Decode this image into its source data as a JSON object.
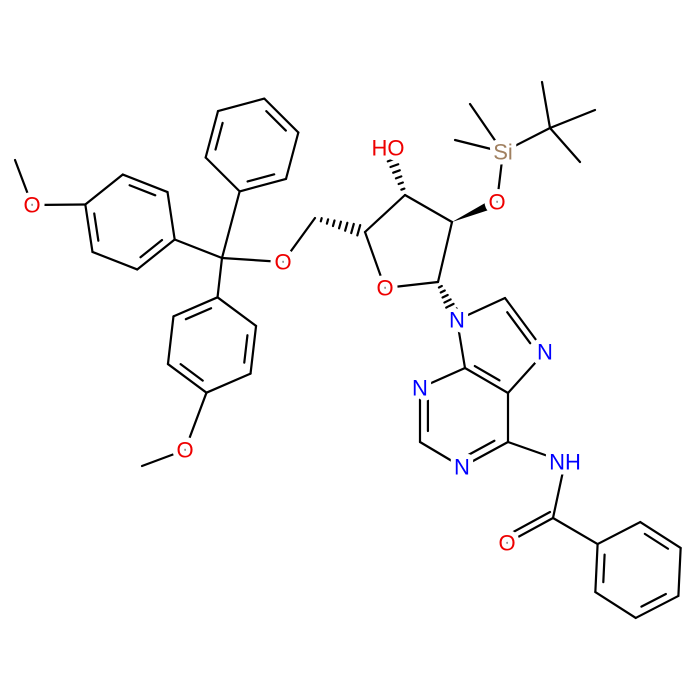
{
  "atoms": [
    "O",
    "O",
    "O",
    "O",
    "HO",
    "O",
    "Si",
    "N",
    "N",
    "N",
    "N",
    "NH",
    "O"
  ]
}
